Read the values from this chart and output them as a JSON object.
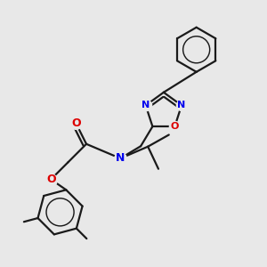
{
  "background_color": "#e8e8e8",
  "bond_color": "#1a1a1a",
  "nitrogen_color": "#0000ee",
  "oxygen_color": "#dd0000",
  "line_width": 1.6,
  "figsize": [
    3.0,
    3.0
  ],
  "dpi": 100,
  "xlim": [
    0,
    10
  ],
  "ylim": [
    0,
    10
  ]
}
